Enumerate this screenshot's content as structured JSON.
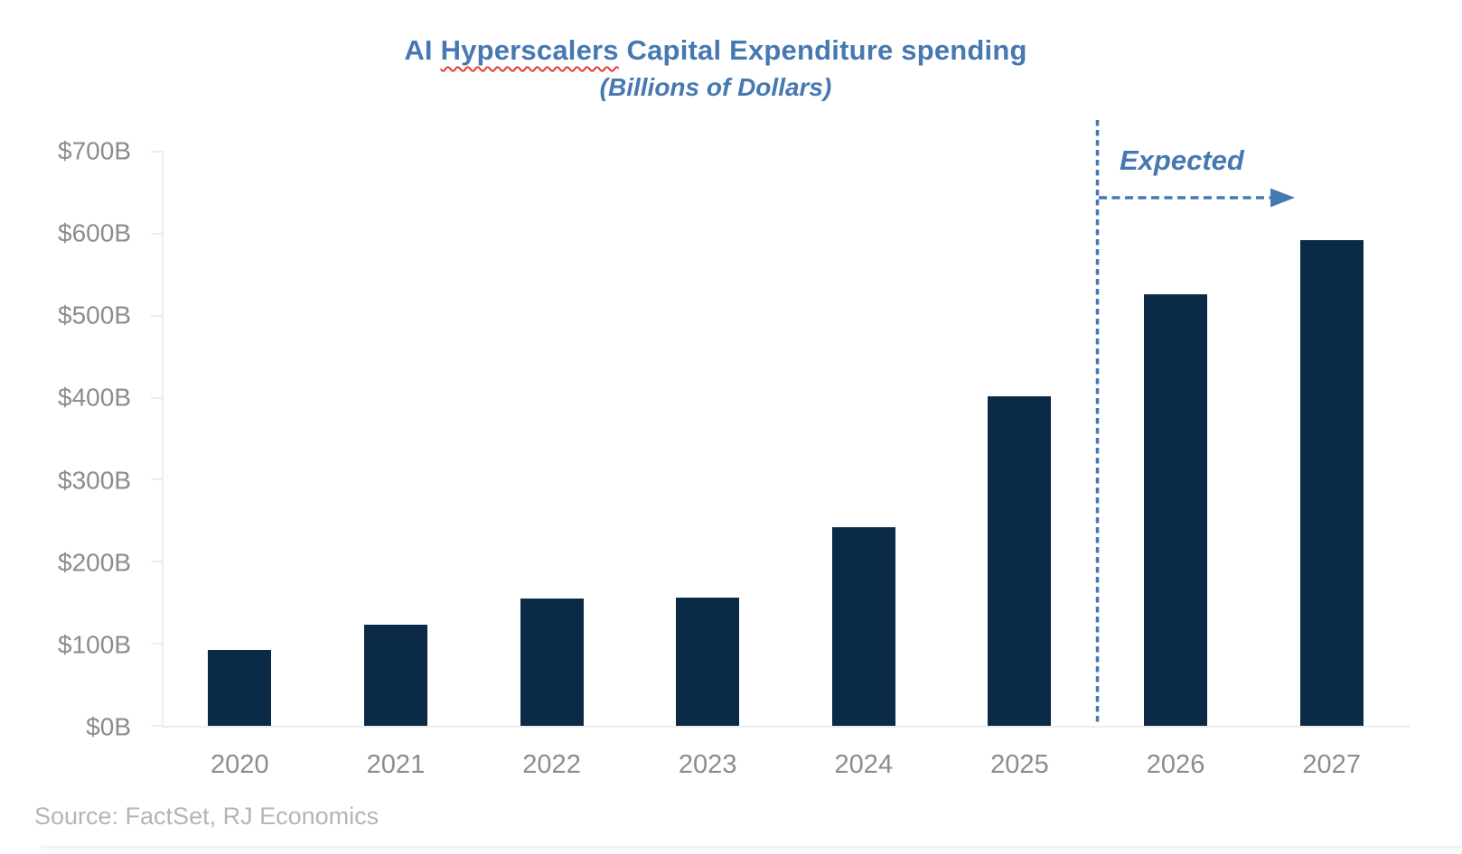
{
  "header": {
    "title_pre": "AI ",
    "title_misspelled": "Hyperscalers",
    "title_post": " Capital Expenditure spending",
    "subtitle": "(Billions of Dollars)"
  },
  "annotation": {
    "label": "Expected"
  },
  "footer": {
    "source": "Source: FactSet, RJ Economics"
  },
  "colors": {
    "bar": "#0a2a48",
    "accent_blue": "#4678b2",
    "axis_text": "#8c8c8c",
    "axis_line": "#ededed",
    "source_text": "#b5b5b5",
    "squiggle_red": "#e23b36"
  },
  "chart_data": {
    "type": "bar",
    "title": "AI Hyperscalers Capital Expenditure spending",
    "subtitle": "(Billions of Dollars)",
    "categories": [
      "2020",
      "2021",
      "2022",
      "2023",
      "2024",
      "2025",
      "2026",
      "2027"
    ],
    "values": [
      92,
      123,
      155,
      156,
      241,
      400,
      525,
      590
    ],
    "unit": "billions of US dollars",
    "ytick_labels": [
      "$0B",
      "$100B",
      "$200B",
      "$300B",
      "$400B",
      "$500B",
      "$600B",
      "$700B"
    ],
    "ylim": [
      0,
      700
    ],
    "grid": "off",
    "bar_color": "#0a2a48",
    "expected_categories": [
      "2026",
      "2027"
    ],
    "expected_label": "Expected",
    "source": "Source: FactSet, RJ Economics"
  }
}
